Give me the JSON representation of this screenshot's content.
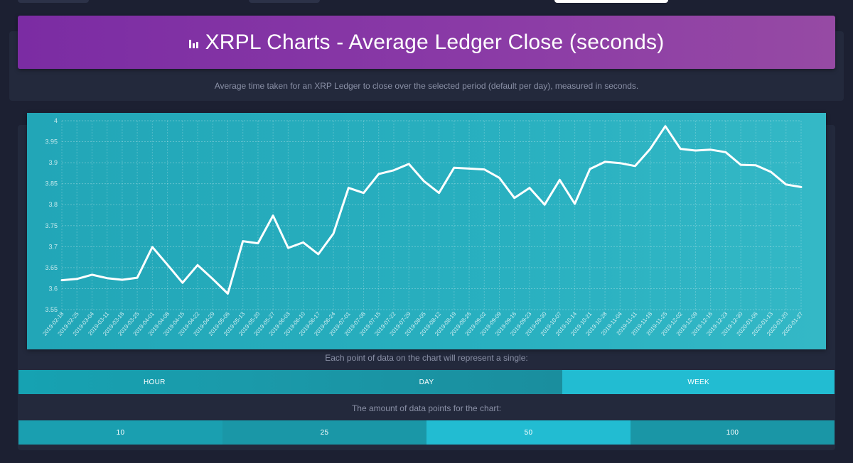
{
  "header": {
    "title": "XRPL Charts - Average Ledger Close (seconds)",
    "icon": "bar-chart-icon",
    "subtitle": "Average time taken for an XRP Ledger to close over the selected period (default per day), measured in seconds."
  },
  "controls": {
    "interval_prompt": "Each point of data on the chart will represent a single:",
    "interval_options": [
      "HOUR",
      "DAY",
      "WEEK"
    ],
    "interval_selected": "WEEK",
    "points_prompt": "The amount of data points for the chart:",
    "points_options": [
      "10",
      "25",
      "50",
      "100"
    ],
    "points_selected": "50"
  },
  "colors": {
    "banner": "#8a3aa6",
    "chart_bg": "#29b0c0",
    "line": "#ffffff",
    "active_button": "#22bcd2"
  },
  "chart_data": {
    "type": "line",
    "title": "",
    "xlabel": "",
    "ylabel": "",
    "ylim": [
      3.55,
      4
    ],
    "yticks": [
      "3.55",
      "3.6",
      "3.65",
      "3.7",
      "3.75",
      "3.8",
      "3.85",
      "3.9",
      "3.95",
      "4"
    ],
    "grid": true,
    "categories": [
      "2019-02-18",
      "2019-02-25",
      "2019-03-04",
      "2019-03-11",
      "2019-03-18",
      "2019-03-25",
      "2019-04-01",
      "2019-04-08",
      "2019-04-15",
      "2019-04-22",
      "2019-04-29",
      "2019-05-06",
      "2019-05-13",
      "2019-05-20",
      "2019-05-27",
      "2019-06-03",
      "2019-06-10",
      "2019-06-17",
      "2019-06-24",
      "2019-07-01",
      "2019-07-08",
      "2019-07-15",
      "2019-07-22",
      "2019-07-29",
      "2019-08-05",
      "2019-08-12",
      "2019-08-19",
      "2019-08-26",
      "2019-09-02",
      "2019-09-09",
      "2019-09-16",
      "2019-09-23",
      "2019-09-30",
      "2019-10-07",
      "2019-10-14",
      "2019-10-21",
      "2019-10-28",
      "2019-11-04",
      "2019-11-11",
      "2019-11-18",
      "2019-11-25",
      "2019-12-02",
      "2019-12-09",
      "2019-12-16",
      "2019-12-23",
      "2019-12-30",
      "2020-01-06",
      "2020-01-13",
      "2020-01-20",
      "2020-01-27"
    ],
    "series": [
      {
        "values": [
          3.62,
          3.623,
          3.633,
          3.625,
          3.621,
          3.626,
          3.699,
          3.657,
          3.614,
          3.656,
          3.623,
          3.588,
          3.713,
          3.708,
          3.774,
          3.697,
          3.71,
          3.682,
          3.731,
          3.84,
          3.828,
          3.873,
          3.882,
          3.897,
          3.856,
          3.828,
          3.888,
          3.886,
          3.884,
          3.864,
          3.816,
          3.84,
          3.8,
          3.859,
          3.802,
          3.885,
          3.902,
          3.899,
          3.892,
          3.933,
          3.987,
          3.933,
          3.929,
          3.931,
          3.925,
          3.895,
          3.894,
          3.878,
          3.848,
          3.842
        ]
      }
    ]
  }
}
